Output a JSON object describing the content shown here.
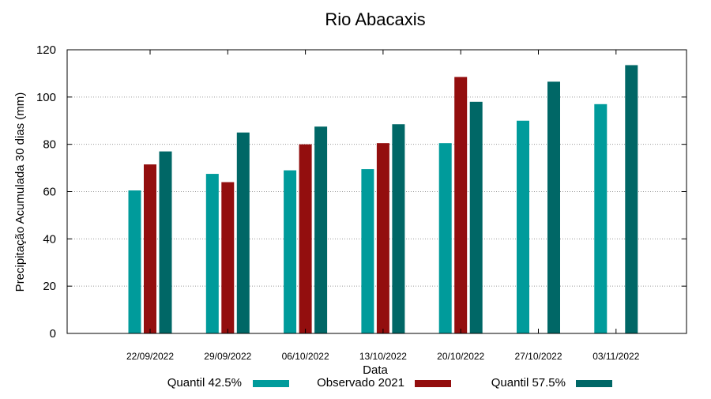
{
  "chart_data": {
    "type": "bar",
    "title": "Rio Abacaxis",
    "xlabel": "Data",
    "ylabel": "Precipitação Acumulada 30 dias (mm)",
    "ylim": [
      0,
      120
    ],
    "yticks": [
      0,
      20,
      40,
      60,
      80,
      100,
      120
    ],
    "grid": true,
    "legend_position": "bottom",
    "categories": [
      "22/09/2022",
      "29/09/2022",
      "06/10/2022",
      "13/10/2022",
      "20/10/2022",
      "27/10/2022",
      "03/11/2022"
    ],
    "series": [
      {
        "name": "Quantil 42.5%",
        "color": "#009b9b",
        "values": [
          60.5,
          67.5,
          69,
          69.5,
          80.5,
          90,
          97
        ]
      },
      {
        "name": "Observado 2021",
        "color": "#930e0e",
        "values": [
          71.5,
          64,
          80,
          80.5,
          108.5,
          null,
          null
        ]
      },
      {
        "name": "Quantil 57.5%",
        "color": "#006766",
        "values": [
          77,
          85,
          87.5,
          88.5,
          98,
          106.5,
          113.5
        ]
      }
    ]
  }
}
